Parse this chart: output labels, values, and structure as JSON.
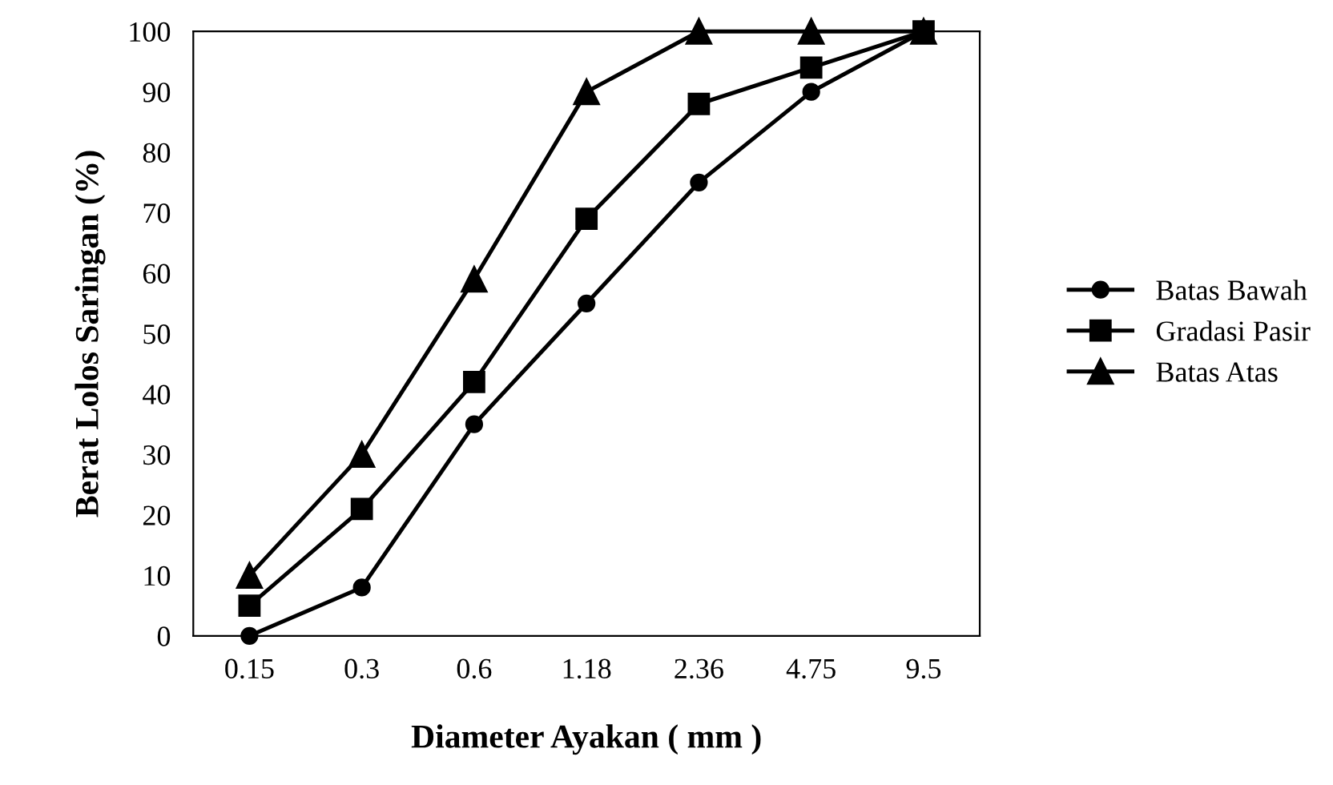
{
  "chart_data": {
    "type": "line",
    "xlabel": "Diameter Ayakan ( mm )",
    "ylabel": "Berat Lolos Saringan (%)",
    "categories": [
      "0.15",
      "0.3",
      "0.6",
      "1.18",
      "2.36",
      "4.75",
      "9.5"
    ],
    "series": [
      {
        "name": "Batas Bawah",
        "color": "#000000",
        "marker": "circle",
        "values": [
          0,
          8,
          35,
          55,
          75,
          90,
          100
        ]
      },
      {
        "name": "Gradasi Pasir",
        "color": "#000000",
        "marker": "square",
        "values": [
          5,
          21,
          42,
          69,
          88,
          94,
          100
        ]
      },
      {
        "name": "Batas Atas",
        "color": "#000000",
        "marker": "triangle",
        "values": [
          10,
          30,
          59,
          90,
          100,
          100,
          100
        ]
      }
    ],
    "ylim": [
      0,
      100
    ],
    "yticks": [
      0,
      10,
      20,
      30,
      40,
      50,
      60,
      70,
      80,
      90,
      100
    ],
    "grid": false,
    "legend": "right",
    "line_style": "solid"
  }
}
